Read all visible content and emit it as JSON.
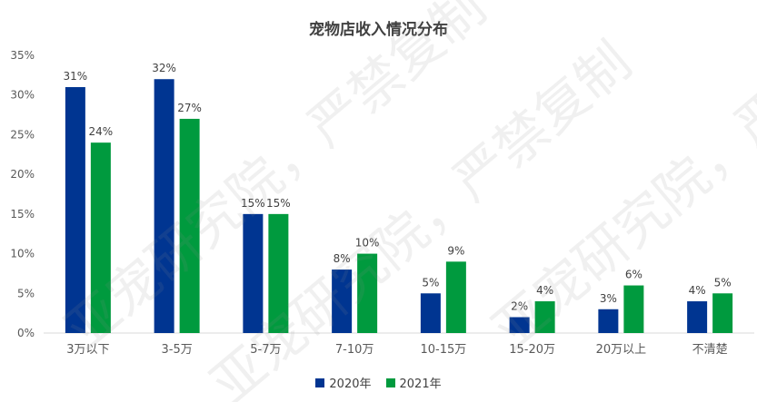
{
  "chart_data": {
    "type": "bar",
    "title": "宠物店收入情况分布",
    "categories": [
      "3万以下",
      "3-5万",
      "5-7万",
      "7-10万",
      "10-15万",
      "15-20万",
      "20万以上",
      "不清楚"
    ],
    "series": [
      {
        "name": "2020年",
        "color": "#003591",
        "values": [
          31,
          32,
          15,
          8,
          5,
          2,
          3,
          4
        ]
      },
      {
        "name": "2021年",
        "color": "#009a3e",
        "values": [
          24,
          27,
          15,
          10,
          9,
          4,
          6,
          5
        ]
      }
    ],
    "ylim": [
      0,
      35
    ],
    "yticks": [
      "0%",
      "5%",
      "10%",
      "15%",
      "20%",
      "25%",
      "30%",
      "35%"
    ],
    "data_label_suffix": "%",
    "legend_position": "bottom",
    "grid": false
  },
  "watermark": {
    "texts": [
      "亚宠研究院，严禁复制",
      "亚宠研究院，严禁复制",
      "亚宠研究院，严禁复制"
    ]
  }
}
